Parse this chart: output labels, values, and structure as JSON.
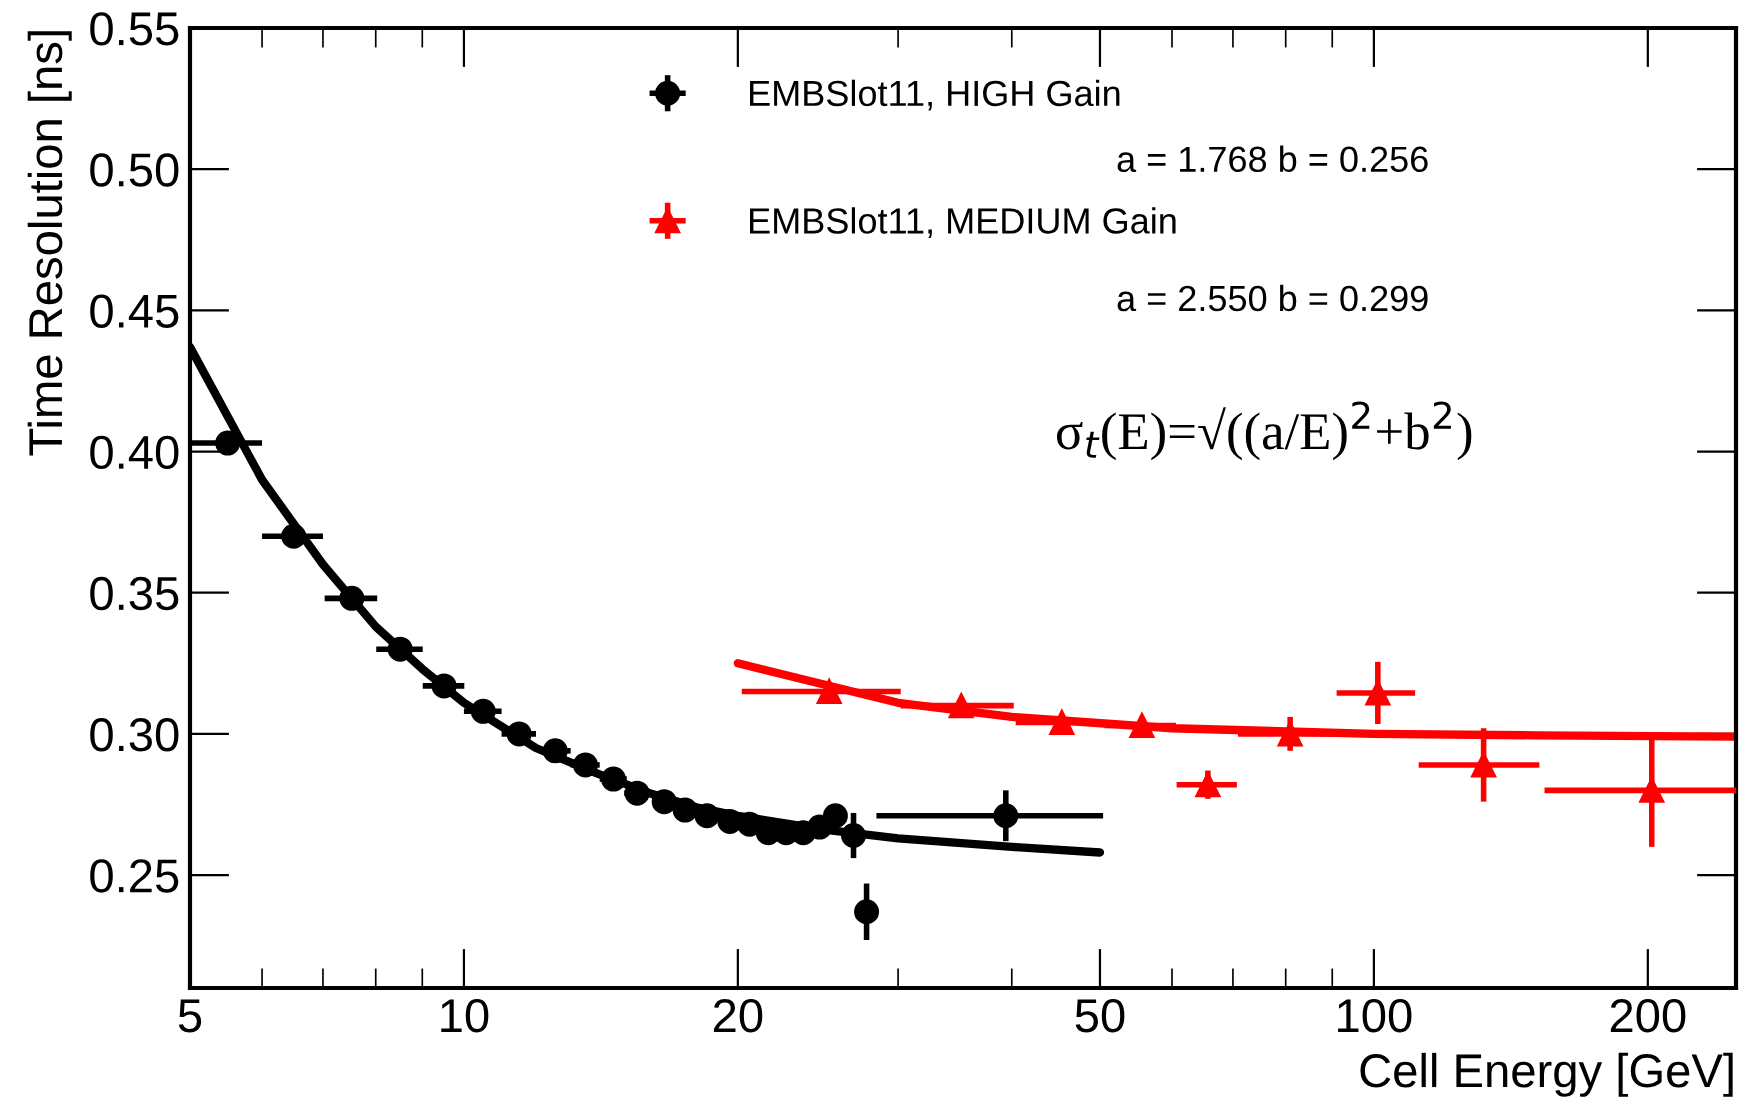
{
  "chart_data": {
    "type": "scatter",
    "xlabel": "Cell Energy [GeV]",
    "ylabel": "Time Resolution [ns]",
    "log": "x",
    "xlim": [
      5,
      250
    ],
    "xticks": [
      5,
      10,
      20,
      50,
      100,
      200
    ],
    "ylim": [
      0.21,
      0.55
    ],
    "yticks": [
      0.25,
      {
        "value": 0.3,
        "label": "0.30"
      },
      0.35,
      {
        "value": 0.4,
        "label": "0.40"
      },
      0.45,
      {
        "value": 0.5,
        "label": "0.50"
      },
      0.55
    ],
    "grid": false,
    "legend": "top right",
    "series": [
      {
        "name": "EMBSlot11, HIGH Gain",
        "color": "#000000",
        "marker": "circle",
        "x": [
          5.5,
          6.5,
          7.53,
          8.51,
          9.51,
          10.5,
          11.5,
          12.6,
          13.6,
          14.6,
          15.5,
          16.6,
          17.5,
          18.5,
          19.6,
          20.6,
          21.6,
          22.6,
          23.6,
          24.6,
          25.6,
          26.8,
          27.7,
          39.4
        ],
        "values": [
          0.403,
          0.37,
          0.348,
          0.33,
          0.317,
          0.308,
          0.3,
          0.294,
          0.289,
          0.284,
          0.279,
          0.276,
          0.273,
          0.271,
          0.269,
          0.268,
          0.265,
          0.265,
          0.265,
          0.267,
          0.271,
          0.264,
          0.237,
          0.271
        ],
        "errors": [
          null,
          null,
          null,
          null,
          null,
          null,
          null,
          null,
          null,
          null,
          null,
          null,
          null,
          null,
          null,
          null,
          null,
          null,
          null,
          null,
          null,
          0.008,
          0.01,
          0.009
        ],
        "xerrors": [
          0.5,
          0.5,
          0.5,
          0.5,
          0.5,
          0.5,
          0.5,
          0.5,
          0.5,
          0.5,
          0.5,
          0.5,
          0.5,
          0.5,
          0.5,
          0.5,
          0.5,
          0.5,
          0.5,
          0.5,
          0.5,
          null,
          null,
          11
        ]
      },
      {
        "name": "EMBSlot11, MEDIUM Gain",
        "color": "#ff0000",
        "marker": "triangle",
        "x": [
          25.2,
          35.2,
          45.4,
          55.6,
          65.7,
          80.9,
          101,
          132,
          202
        ],
        "values": [
          0.315,
          0.31,
          0.304,
          0.303,
          0.282,
          0.3,
          0.3145,
          0.289,
          0.28
        ],
        "errors": [
          null,
          null,
          null,
          0.003,
          0.005,
          0.006,
          0.011,
          0.013,
          0.02
        ],
        "xerrors": [
          5,
          5,
          5,
          5,
          5,
          10,
          10,
          20,
          48
        ]
      },
      {
        "type": "line",
        "color": "#000000",
        "x": [
          5,
          6,
          7,
          8,
          9,
          10,
          12,
          14,
          16,
          18,
          20,
          25,
          30,
          40,
          50
        ],
        "values": [
          0.437,
          0.39,
          0.36,
          0.338,
          0.323,
          0.311,
          0.295,
          0.286,
          0.279,
          0.274,
          0.271,
          0.266,
          0.263,
          0.26,
          0.258
        ]
      },
      {
        "type": "line",
        "color": "#ff0000",
        "x": [
          20,
          30,
          40,
          60,
          100,
          150,
          250
        ],
        "values": [
          0.325,
          0.311,
          0.306,
          0.302,
          0.3,
          0.2995,
          0.299
        ]
      }
    ],
    "annotations": [
      "a = 1.768 b = 0.256",
      "a = 2.550 b = 0.299",
      "σ$_{t}$(E)=√((a/E)$^{2}$+b$^{2}$)"
    ]
  }
}
